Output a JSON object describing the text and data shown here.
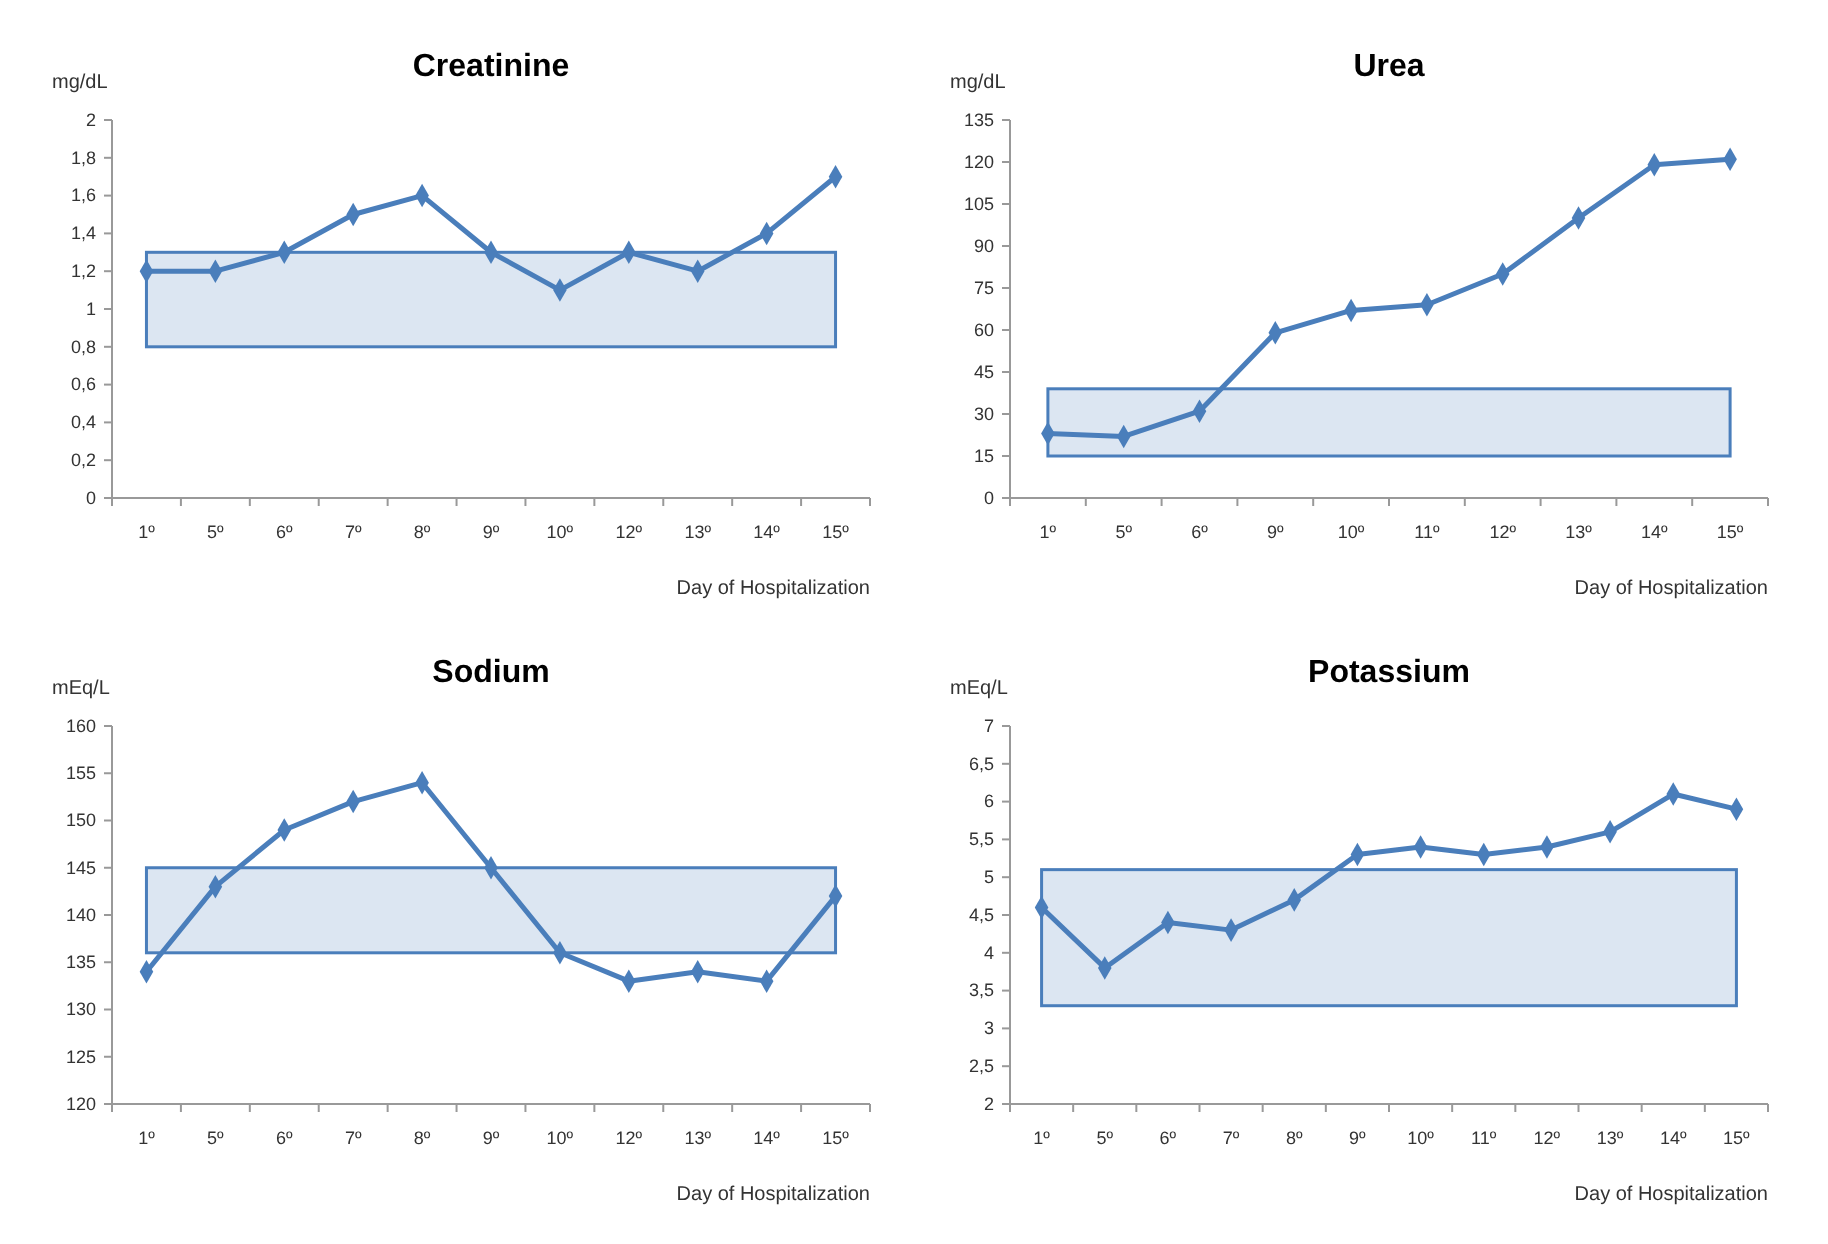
{
  "chart_data": [
    {
      "type": "line",
      "title": "Creatinine",
      "ylabel": "mg/dL",
      "xlabel": "Day of Hospitalization",
      "categories": [
        "1º",
        "5º",
        "6º",
        "7º",
        "8º",
        "9º",
        "10º",
        "12º",
        "13º",
        "14º",
        "15º"
      ],
      "series": [
        {
          "color": "#4a7ebb",
          "values": [
            1.2,
            1.2,
            1.3,
            1.5,
            1.6,
            1.3,
            1.1,
            1.3,
            1.2,
            1.4,
            1.7
          ]
        }
      ],
      "ylim": [
        0,
        2
      ],
      "yticks": [
        0,
        {
          "value": 0.2,
          "label": "0,2"
        },
        {
          "value": 0.4,
          "label": "0,4"
        },
        {
          "value": 0.6,
          "label": "0,6"
        },
        {
          "value": 0.8,
          "label": "0,8"
        },
        1,
        {
          "value": 1.2,
          "label": "1,2"
        },
        {
          "value": 1.4,
          "label": "1,4"
        },
        {
          "value": 1.6,
          "label": "1,6"
        },
        {
          "value": 1.8,
          "label": "1,8"
        },
        2
      ],
      "bands": [
        {
          "axis": "y",
          "from": 0.8,
          "to": 1.3,
          "color": "#dce6f2"
        }
      ],
      "marker": "diamond",
      "grid": false
    },
    {
      "type": "line",
      "title": "Urea",
      "ylabel": "mg/dL",
      "xlabel": "Day of Hospitalization",
      "categories": [
        "1º",
        "5º",
        "6º",
        "9º",
        "10º",
        "11º",
        "12º",
        "13º",
        "14º",
        "15º"
      ],
      "series": [
        {
          "color": "#4a7ebb",
          "values": [
            23,
            22,
            31,
            59,
            67,
            69,
            80,
            100,
            119,
            121
          ]
        }
      ],
      "ylim": [
        0,
        135
      ],
      "yticks": [
        0,
        15,
        30,
        45,
        60,
        75,
        90,
        105,
        120,
        135
      ],
      "bands": [
        {
          "axis": "y",
          "from": 15,
          "to": 39,
          "color": "#dce6f2"
        }
      ],
      "marker": "diamond",
      "grid": false
    },
    {
      "type": "line",
      "title": "Sodium",
      "ylabel": "mEq/L",
      "xlabel": "Day of Hospitalization",
      "categories": [
        "1º",
        "5º",
        "6º",
        "7º",
        "8º",
        "9º",
        "10º",
        "12º",
        "13º",
        "14º",
        "15º"
      ],
      "series": [
        {
          "color": "#4a7ebb",
          "values": [
            134,
            143,
            149,
            152,
            154,
            145,
            136,
            133,
            134,
            133,
            142
          ]
        }
      ],
      "ylim": [
        120,
        160
      ],
      "yticks": [
        120,
        125,
        130,
        135,
        140,
        145,
        150,
        155,
        160
      ],
      "bands": [
        {
          "axis": "y",
          "from": 136,
          "to": 145,
          "color": "#dce6f2"
        }
      ],
      "marker": "diamond",
      "grid": false
    },
    {
      "type": "line",
      "title": "Potassium",
      "ylabel": "mEq/L",
      "xlabel": "Day of Hospitalization",
      "categories": [
        "1º",
        "5º",
        "6º",
        "7º",
        "8º",
        "9º",
        "10º",
        "11º",
        "12º",
        "13º",
        "14º",
        "15º"
      ],
      "series": [
        {
          "color": "#4a7ebb",
          "values": [
            4.6,
            3.8,
            4.4,
            4.3,
            4.7,
            5.3,
            5.4,
            5.3,
            5.4,
            5.6,
            6.1,
            5.9
          ]
        }
      ],
      "ylim": [
        2,
        7
      ],
      "yticks": [
        2,
        {
          "value": 2.5,
          "label": "2,5"
        },
        3,
        {
          "value": 3.5,
          "label": "3,5"
        },
        4,
        {
          "value": 4.5,
          "label": "4,5"
        },
        5,
        {
          "value": 5.5,
          "label": "5,5"
        },
        6,
        {
          "value": 6.5,
          "label": "6,5"
        },
        7
      ],
      "bands": [
        {
          "axis": "y",
          "from": 3.3,
          "to": 5.1,
          "color": "#dce6f2"
        }
      ],
      "marker": "diamond",
      "grid": false
    }
  ]
}
